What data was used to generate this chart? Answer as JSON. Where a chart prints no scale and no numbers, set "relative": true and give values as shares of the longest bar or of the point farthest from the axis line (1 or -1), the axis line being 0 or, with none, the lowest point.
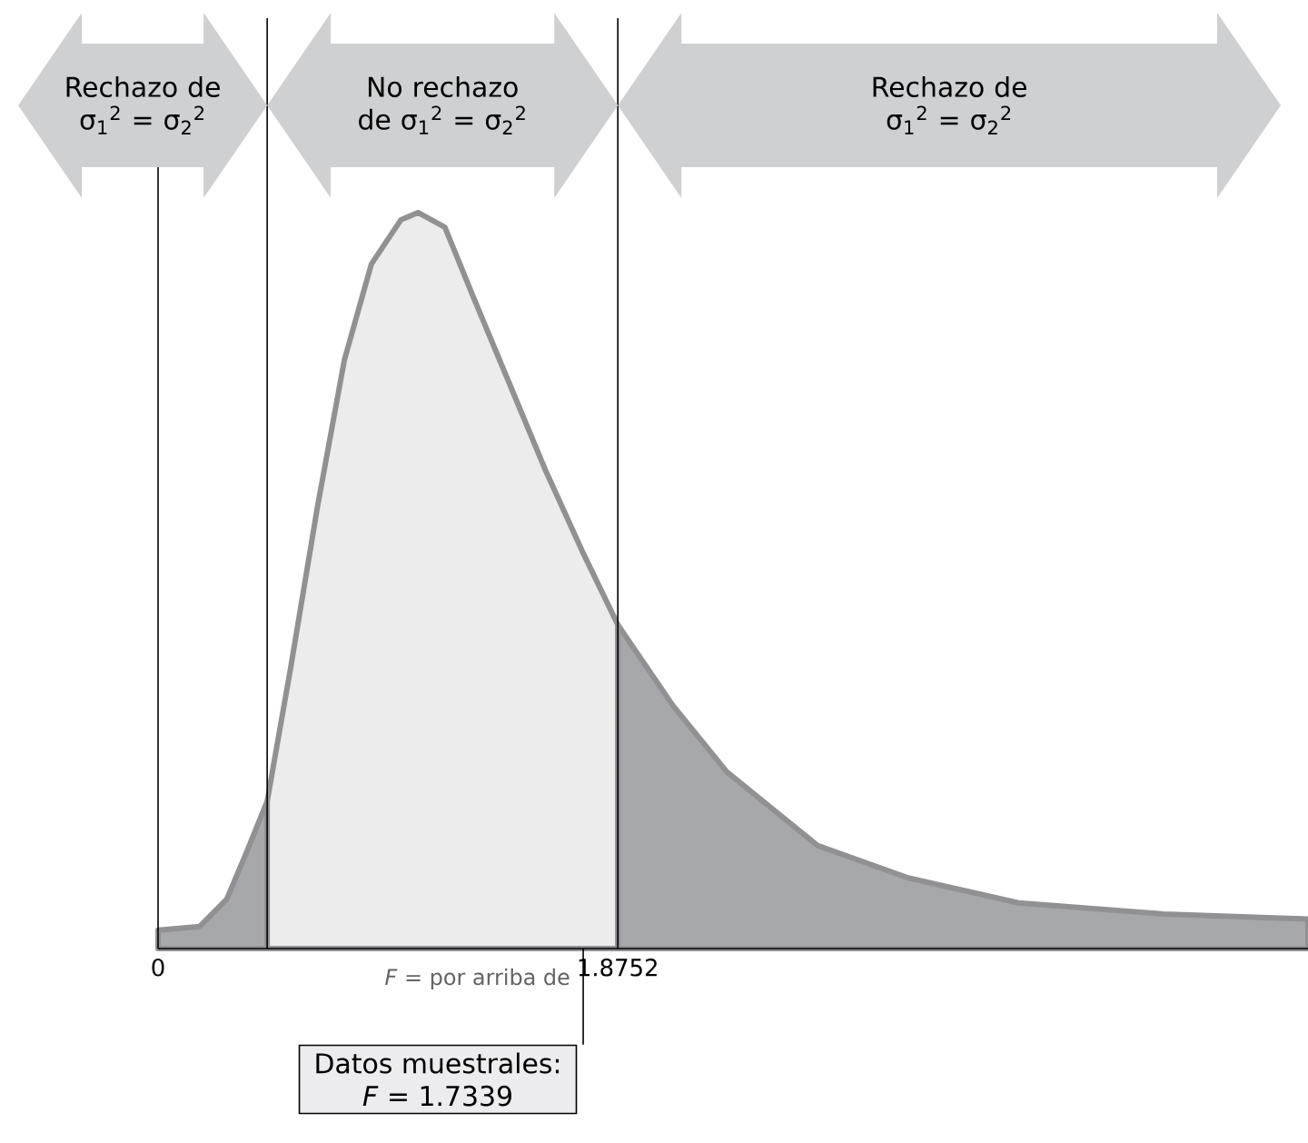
{
  "chart_data": {
    "type": "area",
    "relative": true,
    "xlim": [
      0,
      4.69
    ],
    "xticks": [
      0,
      1.8752
    ],
    "series": [
      {
        "color": "#a7a8ab",
        "x": [
          0,
          0.17,
          0.28,
          0.36,
          0.445
        ],
        "values": [
          0.025,
          0.03,
          0.067,
          0.13,
          0.2
        ]
      },
      {
        "color": "#ececec",
        "x": [
          0.445,
          0.54,
          0.65,
          0.76,
          0.87,
          0.99,
          1.06,
          1.17,
          1.28,
          1.43,
          1.58,
          1.73,
          1.8752
        ],
        "values": [
          0.2,
          0.38,
          0.6,
          0.8,
          0.93,
          0.99,
          1.0,
          0.98,
          0.89,
          0.77,
          0.65,
          0.54,
          0.44
        ]
      },
      {
        "color": "#a7a8ab",
        "x": [
          1.8752,
          2.1,
          2.32,
          2.69,
          3.06,
          3.51,
          4.1,
          4.69
        ],
        "values": [
          0.44,
          0.33,
          0.24,
          0.14,
          0.096,
          0.062,
          0.047,
          0.04
        ]
      }
    ],
    "ref_lines": [
      {
        "axis": "x",
        "value": 0.445,
        "color": "#000000"
      },
      {
        "axis": "x",
        "value": 1.8752,
        "color": "#000000"
      }
    ],
    "annotations": [
      "Rechazo de σ$_{1}$$^{2}$ = σ$_{2}$$^{2}$",
      "No rechazo de σ$_{1}$$^{2}$ = σ$_{2}$$^{2}$",
      "Rechazo de σ$_{1}$$^{2}$ = σ$_{2}$$^{2}$",
      {
        "text": "Datos muestrales:",
        "x": 1.7339,
        "y": 0
      },
      "*F* = 1.7339",
      "*F* = por arriba de"
    ]
  }
}
